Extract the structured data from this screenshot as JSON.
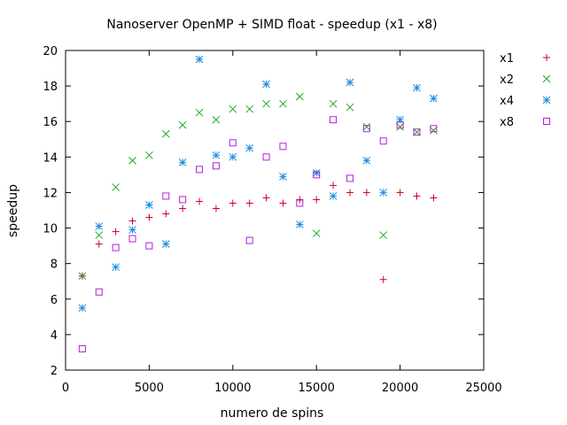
{
  "chart_data": {
    "type": "scatter",
    "title": "Nanoserver OpenMP + SIMD float - speedup (x1 - x8)",
    "xlabel": "numero de spins",
    "ylabel": "speedup",
    "xlim": [
      0,
      25000
    ],
    "ylim": [
      2,
      20
    ],
    "xticks": [
      0,
      5000,
      10000,
      15000,
      20000,
      25000
    ],
    "yticks": [
      2,
      4,
      6,
      8,
      10,
      12,
      14,
      16,
      18,
      20
    ],
    "grid": false,
    "legend_position": "right",
    "series": [
      {
        "name": "x1",
        "marker": "plus",
        "color": "#d1001c",
        "x": [
          1000,
          2000,
          3000,
          4000,
          5000,
          6000,
          7000,
          8000,
          9000,
          10000,
          11000,
          12000,
          13000,
          14000,
          15000,
          16000,
          17000,
          18000,
          19000,
          20000,
          21000,
          22000
        ],
        "y": [
          7.3,
          9.1,
          9.8,
          10.4,
          10.6,
          10.8,
          11.1,
          11.5,
          11.1,
          11.4,
          11.4,
          11.7,
          11.4,
          11.6,
          11.6,
          12.4,
          12.0,
          12.0,
          7.1,
          12.0,
          11.8,
          11.7
        ]
      },
      {
        "name": "x2",
        "marker": "cross",
        "color": "#1faa1f",
        "x": [
          1000,
          2000,
          3000,
          4000,
          5000,
          6000,
          7000,
          8000,
          9000,
          10000,
          11000,
          12000,
          13000,
          14000,
          15000,
          16000,
          17000,
          18000,
          19000,
          20000,
          21000,
          22000
        ],
        "y": [
          7.3,
          9.6,
          12.3,
          13.8,
          14.1,
          15.3,
          15.8,
          16.5,
          16.1,
          16.7,
          16.7,
          17.0,
          17.0,
          17.4,
          9.7,
          17.0,
          16.8,
          15.7,
          9.6,
          15.7,
          15.4,
          15.5
        ]
      },
      {
        "name": "x4",
        "marker": "star",
        "color": "#1a8be0",
        "x": [
          1000,
          2000,
          3000,
          4000,
          5000,
          6000,
          7000,
          8000,
          9000,
          10000,
          11000,
          12000,
          13000,
          14000,
          15000,
          16000,
          17000,
          18000,
          19000,
          20000,
          21000,
          22000
        ],
        "y": [
          5.5,
          10.1,
          7.8,
          9.9,
          11.3,
          9.1,
          13.7,
          19.5,
          14.1,
          14.0,
          14.5,
          18.1,
          12.9,
          10.2,
          13.1,
          11.8,
          18.2,
          13.8,
          12.0,
          16.1,
          17.9,
          17.3
        ]
      },
      {
        "name": "x8",
        "marker": "square",
        "color": "#b020d6",
        "x": [
          1000,
          2000,
          3000,
          4000,
          5000,
          6000,
          7000,
          8000,
          9000,
          10000,
          11000,
          12000,
          13000,
          14000,
          15000,
          16000,
          17000,
          18000,
          19000,
          20000,
          21000,
          22000
        ],
        "y": [
          3.2,
          6.4,
          8.9,
          9.4,
          9.0,
          11.8,
          11.6,
          13.3,
          13.5,
          14.8,
          9.3,
          14.0,
          14.6,
          11.4,
          13.0,
          16.1,
          12.8,
          15.6,
          14.9,
          15.8,
          15.4,
          15.6
        ]
      }
    ]
  }
}
